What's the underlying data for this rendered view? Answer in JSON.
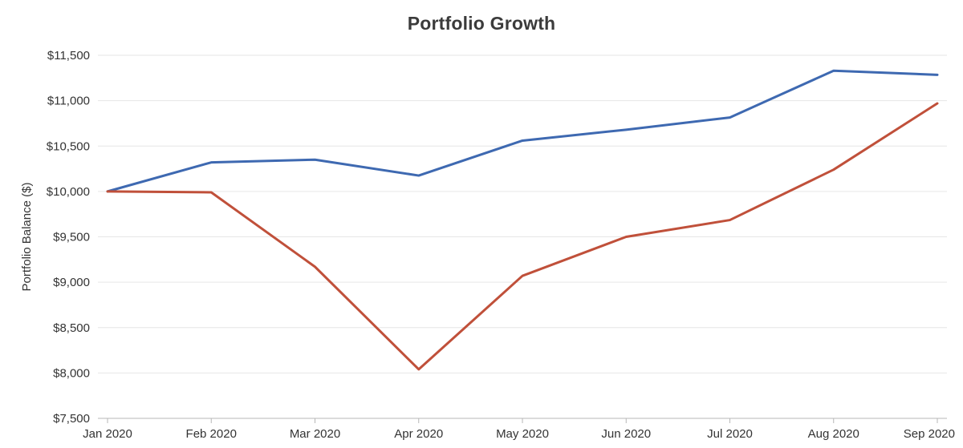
{
  "chart_data": {
    "type": "line",
    "title": "Portfolio Growth",
    "xlabel": "",
    "ylabel": "Portfolio Balance ($)",
    "categories": [
      "Jan 2020",
      "Feb 2020",
      "Mar 2020",
      "Apr 2020",
      "May 2020",
      "Jun 2020",
      "Jul 2020",
      "Aug 2020",
      "Sep 2020"
    ],
    "series": [
      {
        "name": "series-1-blue",
        "color": "#3e69b1",
        "values": [
          10000,
          10320,
          10350,
          10175,
          10560,
          10680,
          10815,
          11330,
          11285
        ]
      },
      {
        "name": "series-2-red",
        "color": "#c0503a",
        "values": [
          10000,
          9990,
          9170,
          8040,
          9070,
          9500,
          9685,
          10240,
          10970
        ]
      }
    ],
    "ylim": [
      7500,
      11500
    ],
    "yticks": [
      {
        "value": 7500,
        "label": "$7,500"
      },
      {
        "value": 8000,
        "label": "$8,000"
      },
      {
        "value": 8500,
        "label": "$8,500"
      },
      {
        "value": 9000,
        "label": "$9,000"
      },
      {
        "value": 9500,
        "label": "$9,500"
      },
      {
        "value": 10000,
        "label": "$10,000"
      },
      {
        "value": 10500,
        "label": "$10,500"
      },
      {
        "value": 11000,
        "label": "$11,000"
      },
      {
        "value": 11500,
        "label": "$11,500"
      }
    ],
    "grid": "horizontal",
    "legend": "none",
    "colors": {
      "grid": "#e6e6e6",
      "axis": "#b7b7b7",
      "tick": "#b7b7b7",
      "text": "#333333",
      "title": "#3b3b3b"
    }
  }
}
